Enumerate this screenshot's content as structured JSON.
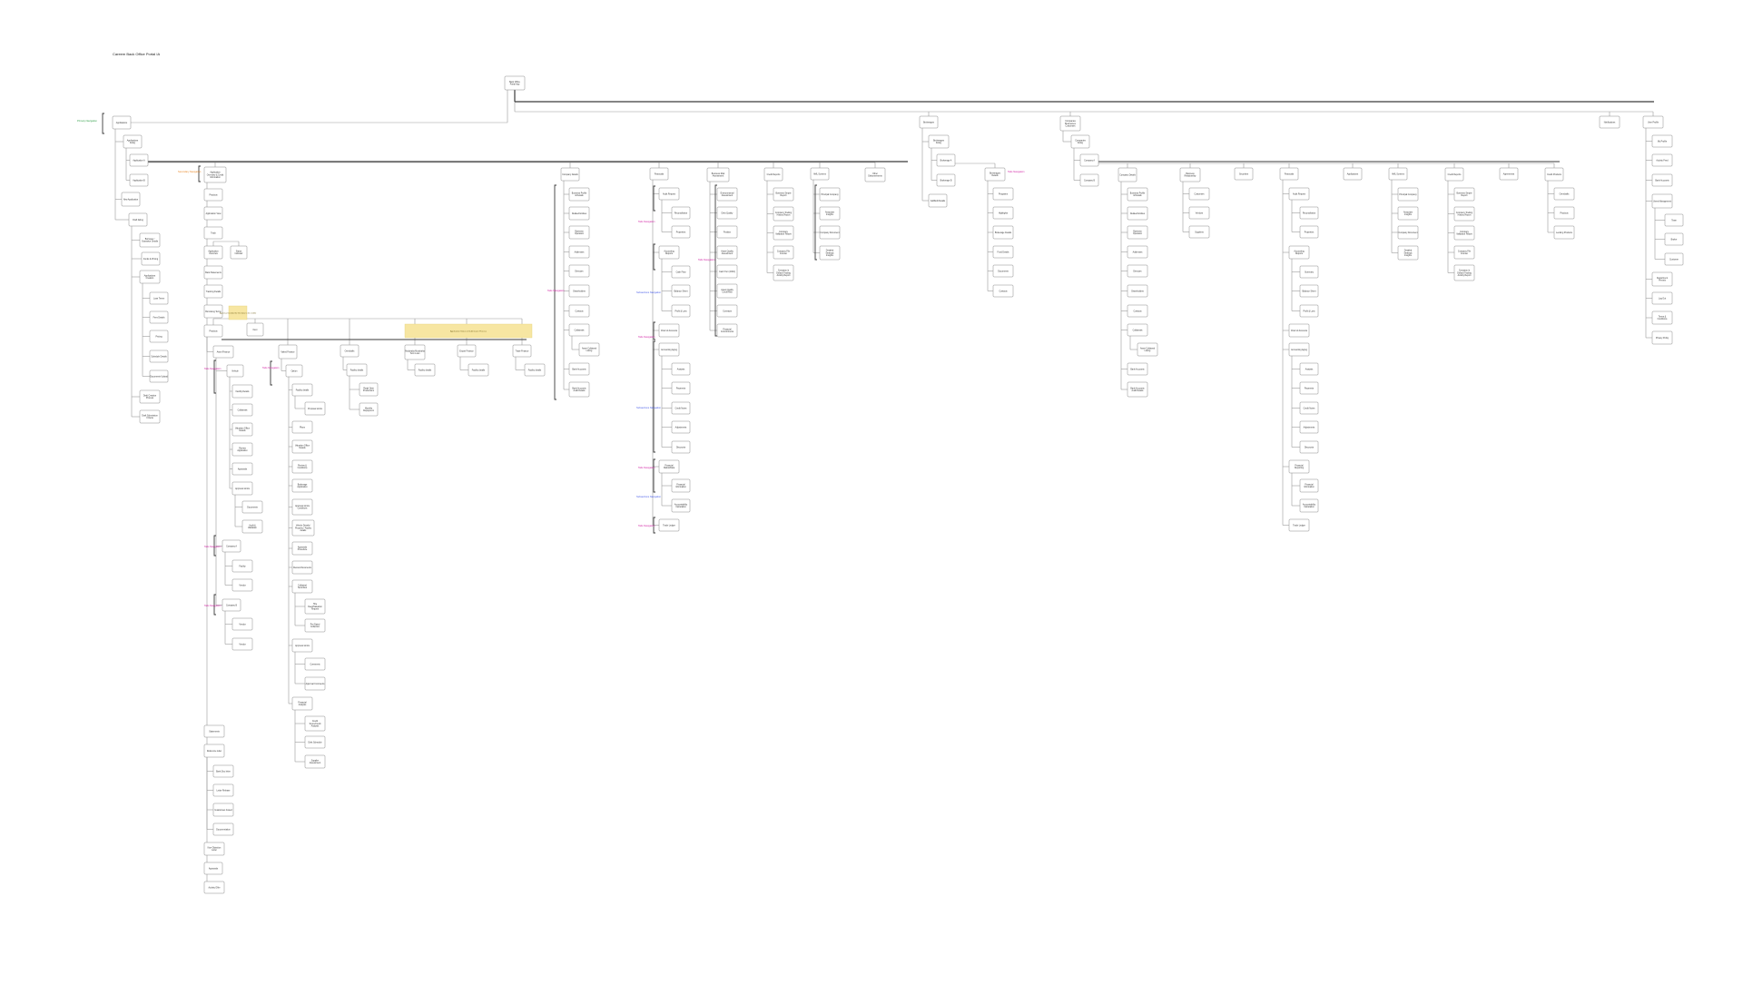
{
  "title": "Careem Back Office Portal IA",
  "colors": {
    "node_fill": "#ffffff",
    "node_stroke": "#8a8a8a",
    "line": "#9a9a9a",
    "trunk": "#3a3a3a",
    "note_fill": "#f7e6a2",
    "label_green": "#2e9e46",
    "label_orange": "#e8892a",
    "label_magenta": "#d11fa3",
    "label_blue": "#4a5ee8",
    "label_red": "#d23b3b"
  },
  "root": "Back Office Portal App",
  "section_labels": [
    {
      "id": "lbl_primary",
      "text": "Primary Navigation",
      "color": "green"
    },
    {
      "id": "lbl_secondary",
      "text": "Secondary Navigation",
      "color": "orange"
    },
    {
      "id": "lbl_tabs1",
      "text": "Tabs Navigation",
      "color": "magenta"
    },
    {
      "id": "lbl_tabs2",
      "text": "Tabs Navigation",
      "color": "magenta"
    },
    {
      "id": "lbl_tabs3",
      "text": "Tabs Navigation",
      "color": "magenta"
    },
    {
      "id": "lbl_tabs4",
      "text": "Tabs Navigation",
      "color": "magenta"
    },
    {
      "id": "lbl_tabs5",
      "text": "Tabs Navigation",
      "color": "magenta"
    },
    {
      "id": "lbl_tabs6",
      "text": "Tabs Navigation",
      "color": "magenta"
    },
    {
      "id": "lbl_tabs7",
      "text": "Tabs Navigation",
      "color": "magenta"
    },
    {
      "id": "lbl_tabs8",
      "text": "Tabs Navigation",
      "color": "magenta"
    },
    {
      "id": "lbl_tabs9",
      "text": "Tabs Navigation",
      "color": "magenta"
    },
    {
      "id": "lbl_tabs10",
      "text": "Tabs Navigation",
      "color": "magenta"
    },
    {
      "id": "lbl_tabs11",
      "text": "Tabs Navigation",
      "color": "magenta"
    },
    {
      "id": "lbl_sub1",
      "text": "Subsections Navigation",
      "color": "blue"
    },
    {
      "id": "lbl_sub2",
      "text": "Subsections Navigation",
      "color": "blue"
    },
    {
      "id": "lbl_sub3",
      "text": "Subsections Navigation",
      "color": "blue"
    }
  ],
  "notes": [
    {
      "id": "note_small",
      "text": "Approval needed for the data to be visible"
    },
    {
      "id": "note_wide",
      "text": "Application Status & Submission Process"
    }
  ],
  "nodes": [
    {
      "id": "n_root",
      "label": "Back Office Portal App"
    },
    {
      "id": "a_apps",
      "label": "Applications"
    },
    {
      "id": "a_apps_listing",
      "label": "Applications listing"
    },
    {
      "id": "a_app_a",
      "label": "Application A"
    },
    {
      "id": "a_app_b",
      "label": "Application B"
    },
    {
      "id": "a_new_app",
      "label": "New Application"
    },
    {
      "id": "a_draft",
      "label": "Draft listing"
    },
    {
      "id": "a_draft_1",
      "label": "Borrower / Guarantor Details"
    },
    {
      "id": "a_draft_2",
      "label": "Funds & Pricing"
    },
    {
      "id": "a_draft_3",
      "label": "Applications Creation"
    },
    {
      "id": "a_draft_4",
      "label": "Loan Terms"
    },
    {
      "id": "a_draft_5",
      "label": "Fees Details"
    },
    {
      "id": "a_draft_6",
      "label": "Pricing"
    },
    {
      "id": "a_draft_7",
      "label": "Schedule Details"
    },
    {
      "id": "a_draft_8",
      "label": "Documents Upload"
    },
    {
      "id": "a_draft_9",
      "label": "Draft Creation Process"
    },
    {
      "id": "a_draft_10",
      "label": "Draft Submission Criteria"
    },
    {
      "id": "b_overview",
      "label": "Application Overview & Credit Information"
    },
    {
      "id": "b_products",
      "label": "Products"
    },
    {
      "id": "b_app_view",
      "label": "Application View"
    },
    {
      "id": "b_track",
      "label": "Track"
    },
    {
      "id": "b_app_overview",
      "label": "Application Overview"
    },
    {
      "id": "b_status",
      "label": "Status Indicator"
    },
    {
      "id": "b_bank",
      "label": "Bank Statements"
    },
    {
      "id": "b_tracking",
      "label": "Tracking Details"
    },
    {
      "id": "b_borrowing",
      "label": "Borrowing Terms"
    },
    {
      "id": "b_products2",
      "label": "Products"
    },
    {
      "id": "b_next",
      "label": "Next"
    },
    {
      "id": "c_asset",
      "label": "Asset Finance"
    },
    {
      "id": "c_vehicle",
      "label": "Vehicle"
    },
    {
      "id": "c_v1",
      "label": "Facility Details"
    },
    {
      "id": "c_v2",
      "label": "Collaterals"
    },
    {
      "id": "c_v3",
      "label": "Valuation Office Details"
    },
    {
      "id": "c_v4",
      "label": "Review Application"
    },
    {
      "id": "c_v5",
      "label": "Approvals"
    },
    {
      "id": "c_v6",
      "label": "Approval Limits"
    },
    {
      "id": "c_v6a",
      "label": "Documents"
    },
    {
      "id": "c_v6b",
      "label": "Audit & Validation"
    },
    {
      "id": "c_company_a",
      "label": "Company A"
    },
    {
      "id": "c_ca1",
      "label": "Facility"
    },
    {
      "id": "c_ca2",
      "label": "Vendor"
    },
    {
      "id": "c_company_b",
      "label": "Company B"
    },
    {
      "id": "c_cb1",
      "label": "Vendor"
    },
    {
      "id": "c_cb2",
      "label": "Vendor"
    },
    {
      "id": "d_vaked",
      "label": "Vaked Finance"
    },
    {
      "id": "d_option",
      "label": "Option"
    },
    {
      "id": "d_o1",
      "label": "Facility details"
    },
    {
      "id": "d_o1a",
      "label": "Proposal Limits"
    },
    {
      "id": "d_o2",
      "label": "Plans"
    },
    {
      "id": "d_o3",
      "label": "Valuation Office Details"
    },
    {
      "id": "d_o4",
      "label": "Review & Conditions"
    },
    {
      "id": "d_o5",
      "label": "Brokerage Application"
    },
    {
      "id": "d_o6",
      "label": "Approval Limits Conditions"
    },
    {
      "id": "d_o7",
      "label": "Vehicle Details / Property / Facility details"
    },
    {
      "id": "d_o8",
      "label": "Approvals Procedure"
    },
    {
      "id": "d_o9",
      "label": "Review Documents"
    },
    {
      "id": "d_o10",
      "label": "Collateral Securities"
    },
    {
      "id": "d_o10a",
      "label": "Title Deed/Valuation Reports"
    },
    {
      "id": "d_o10b",
      "label": "Pre-Dated Collection"
    },
    {
      "id": "d_o11",
      "label": "Approval Limits"
    },
    {
      "id": "d_o11a",
      "label": "Comments"
    },
    {
      "id": "d_o11b",
      "label": "Approval Comments"
    },
    {
      "id": "d_o12",
      "label": "Financial Analysis"
    },
    {
      "id": "d_o12a",
      "label": "Credit Score/Credit Analysis"
    },
    {
      "id": "d_o12b",
      "label": "Debt Schedule"
    },
    {
      "id": "d_o12c",
      "label": "Supplier Assessment"
    },
    {
      "id": "e_overdraft",
      "label": "Overdrafts"
    },
    {
      "id": "e_od1",
      "label": "Facility details"
    },
    {
      "id": "e_od1a",
      "label": "Retail Debt Productions"
    },
    {
      "id": "e_od1b",
      "label": "Monthly Repayment"
    },
    {
      "id": "e_mudaraba",
      "label": "Mudaraba Murabaha Term Loan"
    },
    {
      "id": "e_mu1",
      "label": "Facility details"
    },
    {
      "id": "e_export",
      "label": "Export Finance"
    },
    {
      "id": "e_ex1",
      "label": "Facility details"
    },
    {
      "id": "e_trade",
      "label": "Trade Finance"
    },
    {
      "id": "e_tr1",
      "label": "Facility details"
    },
    {
      "id": "f_statements",
      "label": "Statements"
    },
    {
      "id": "f_reference",
      "label": "Reference letter"
    },
    {
      "id": "f_r1",
      "label": "Bank Doc letter"
    },
    {
      "id": "f_r2",
      "label": "Letter Release"
    },
    {
      "id": "f_r3",
      "label": "Guarantees Issued"
    },
    {
      "id": "f_r4",
      "label": "Documentation"
    },
    {
      "id": "f_reports",
      "label": "Non-Objection Letter"
    },
    {
      "id": "f_approvals",
      "label": "Approvals"
    },
    {
      "id": "f_activity",
      "label": "Activity Offer"
    },
    {
      "id": "g_company",
      "label": "Company Details"
    },
    {
      "id": "g_c1",
      "label": "Business Profile & Details"
    },
    {
      "id": "g_c2",
      "label": "Related Entities"
    },
    {
      "id": "g_c3",
      "label": "Business Operation"
    },
    {
      "id": "g_c4",
      "label": "Addresses"
    },
    {
      "id": "g_c5",
      "label": "Directors"
    },
    {
      "id": "g_c6",
      "label": "Shareholders"
    },
    {
      "id": "g_c7",
      "label": "Contacts"
    },
    {
      "id": "g_c8",
      "label": "Collaterals"
    },
    {
      "id": "g_c8a",
      "label": "Asset Collateral Listing"
    },
    {
      "id": "g_c9",
      "label": "Bank Accounts"
    },
    {
      "id": "g_c10",
      "label": "Bank Accounts Audit Details"
    },
    {
      "id": "h_financials",
      "label": "Financials"
    },
    {
      "id": "h_audit",
      "label": "Audit Reports"
    },
    {
      "id": "h_a1",
      "label": "Reconciliation"
    },
    {
      "id": "h_a2",
      "label": "Properties"
    },
    {
      "id": "h_accounting",
      "label": "Accounting Reports"
    },
    {
      "id": "h_ac1",
      "label": "Cash Flow"
    },
    {
      "id": "h_ac2",
      "label": "Balance Sheet"
    },
    {
      "id": "h_ac3",
      "label": "Profit & Loss"
    },
    {
      "id": "h_chart",
      "label": "Chart of Accounts"
    },
    {
      "id": "h_aging",
      "label": "Accounting Aging"
    },
    {
      "id": "h_ag1",
      "label": "Analysis"
    },
    {
      "id": "h_ag2",
      "label": "Payments"
    },
    {
      "id": "h_ag3",
      "label": "Credit Notes"
    },
    {
      "id": "h_ag4",
      "label": "Adjustments"
    },
    {
      "id": "h_ag5",
      "label": "Discounts"
    },
    {
      "id": "h_ratios",
      "label": "Financial Ratios/Data"
    },
    {
      "id": "h_ra1",
      "label": "Financial Information"
    },
    {
      "id": "h_ra2",
      "label": "Accountability Calculation"
    },
    {
      "id": "h_ledger",
      "label": "Trade Ledger"
    },
    {
      "id": "i_business",
      "label": "Business Risk Assessment"
    },
    {
      "id": "i_b1",
      "label": "Environmental Assessment"
    },
    {
      "id": "i_b2",
      "label": "Debt Quality"
    },
    {
      "id": "i_b3",
      "label": "Position"
    },
    {
      "id": "i_b4",
      "label": "Asset Quality Assessment"
    },
    {
      "id": "i_b5",
      "label": "Cash Turn (DSO)"
    },
    {
      "id": "i_b6",
      "label": "Asset Quality Credit Risk"
    },
    {
      "id": "i_b7",
      "label": "Contracts"
    },
    {
      "id": "i_b8",
      "label": "Financial Commitments"
    },
    {
      "id": "j_credit",
      "label": "Credit Reports"
    },
    {
      "id": "j_cr1",
      "label": "Business Simple Report"
    },
    {
      "id": "j_cr2",
      "label": "Company Trading History Report"
    },
    {
      "id": "j_cr3",
      "label": "Company Validation Report"
    },
    {
      "id": "j_cr4",
      "label": "Company File Counter"
    },
    {
      "id": "j_cr5",
      "label": "Company in Default Trading Activity Report"
    },
    {
      "id": "k_aml",
      "label": "AML Screens"
    },
    {
      "id": "k_am1",
      "label": "Principal Company"
    },
    {
      "id": "k_am2",
      "label": "Associate Insights"
    },
    {
      "id": "k_am3",
      "label": "Company Document"
    },
    {
      "id": "k_am4",
      "label": "Detailed Strategic Insights"
    },
    {
      "id": "l_other",
      "label": "Other Disbursements"
    },
    {
      "id": "m_brokerages",
      "label": "Brokerages"
    },
    {
      "id": "m_listing",
      "label": "Brokerages listing"
    },
    {
      "id": "m_b_a",
      "label": "Brokerage A"
    },
    {
      "id": "m_b_b",
      "label": "Brokerage B"
    },
    {
      "id": "m_add",
      "label": "Add/Edit Details"
    },
    {
      "id": "m_details",
      "label": "Brokerages Details"
    },
    {
      "id": "m_d1",
      "label": "Programs"
    },
    {
      "id": "m_d2",
      "label": "Highlights"
    },
    {
      "id": "m_d3",
      "label": "Brokerage Details"
    },
    {
      "id": "m_d4",
      "label": "Fund Details"
    },
    {
      "id": "m_d5",
      "label": "Documents"
    },
    {
      "id": "m_d6",
      "label": "Contacts"
    },
    {
      "id": "n_companies",
      "label": "Companies Businesses Customers"
    },
    {
      "id": "n_listing",
      "label": "Companies listing"
    },
    {
      "id": "n_c_a",
      "label": "Company A"
    },
    {
      "id": "n_c_b",
      "label": "Company B"
    },
    {
      "id": "n_details",
      "label": "Company Details"
    },
    {
      "id": "n_d1",
      "label": "Business Profile & Details"
    },
    {
      "id": "n_d2",
      "label": "Related Entities"
    },
    {
      "id": "n_d3",
      "label": "Business Operation"
    },
    {
      "id": "n_d4",
      "label": "Addresses"
    },
    {
      "id": "n_d5",
      "label": "Directors"
    },
    {
      "id": "n_d6",
      "label": "Shareholders"
    },
    {
      "id": "n_d7",
      "label": "Contacts"
    },
    {
      "id": "n_d8",
      "label": "Collaterals"
    },
    {
      "id": "n_d8a",
      "label": "Asset Collateral Listing"
    },
    {
      "id": "n_d9",
      "label": "Bank Accounts"
    },
    {
      "id": "n_d10",
      "label": "Bank Accounts Audit Details"
    },
    {
      "id": "n_rel",
      "label": "Business Relationship"
    },
    {
      "id": "n_r1",
      "label": "Customers"
    },
    {
      "id": "n_r2",
      "label": "Vendors"
    },
    {
      "id": "n_r3",
      "label": "Suppliers"
    },
    {
      "id": "n_security",
      "label": "Securities"
    },
    {
      "id": "n_fin",
      "label": "Financials"
    },
    {
      "id": "n_f_audit",
      "label": "Audit Reports"
    },
    {
      "id": "n_f_a1",
      "label": "Reconciliation"
    },
    {
      "id": "n_f_a2",
      "label": "Properties"
    },
    {
      "id": "n_f_acc",
      "label": "Accounting Reports"
    },
    {
      "id": "n_f_ac1",
      "label": "Summary"
    },
    {
      "id": "n_f_ac2",
      "label": "Balance Sheet"
    },
    {
      "id": "n_f_ac3",
      "label": "Profit & Loss"
    },
    {
      "id": "n_f_chart",
      "label": "Chart of Accounts"
    },
    {
      "id": "n_f_aging",
      "label": "Accounting Aging"
    },
    {
      "id": "n_f_ag1",
      "label": "Analysis"
    },
    {
      "id": "n_f_ag2",
      "label": "Payments"
    },
    {
      "id": "n_f_ag3",
      "label": "Credit Notes"
    },
    {
      "id": "n_f_ag4",
      "label": "Adjustments"
    },
    {
      "id": "n_f_ag5",
      "label": "Discounts"
    },
    {
      "id": "n_f_ratios",
      "label": "Financial Reporting"
    },
    {
      "id": "n_f_ra1",
      "label": "Financial Information"
    },
    {
      "id": "n_f_ra2",
      "label": "Accountability Calculation"
    },
    {
      "id": "n_f_ledger",
      "label": "Trade Ledger"
    },
    {
      "id": "n_apps",
      "label": "Applications"
    },
    {
      "id": "n_aml",
      "label": "AML Screens"
    },
    {
      "id": "n_am1",
      "label": "Principal Company"
    },
    {
      "id": "n_am2",
      "label": "Associate Insights"
    },
    {
      "id": "n_am3",
      "label": "Company Document"
    },
    {
      "id": "n_am4",
      "label": "Detailed Strategic Insights"
    },
    {
      "id": "n_credit",
      "label": "Credit Reports"
    },
    {
      "id": "n_cr1",
      "label": "Business Simple Report"
    },
    {
      "id": "n_cr2",
      "label": "Company Trading History Report"
    },
    {
      "id": "n_cr3",
      "label": "Company Validation Report"
    },
    {
      "id": "n_cr4",
      "label": "Company File Counter"
    },
    {
      "id": "n_cr5",
      "label": "Company in Default Trading Activity Report"
    },
    {
      "id": "n_agreements",
      "label": "Agreements"
    },
    {
      "id": "n_credit_prod",
      "label": "Credit Products"
    },
    {
      "id": "n_cp1",
      "label": "Overdrafts"
    },
    {
      "id": "n_cp2",
      "label": "Products"
    },
    {
      "id": "n_cp3",
      "label": "Lending Products"
    },
    {
      "id": "o_notifications",
      "label": "Notifications"
    },
    {
      "id": "p_user",
      "label": "User Profile"
    },
    {
      "id": "p_u1",
      "label": "My Profile"
    },
    {
      "id": "p_u2",
      "label": "Activity Feed"
    },
    {
      "id": "p_u3",
      "label": "Bank Accounts"
    },
    {
      "id": "p_u4",
      "label": "Users Management"
    },
    {
      "id": "p_u4a",
      "label": "Team"
    },
    {
      "id": "p_u4b",
      "label": "Broker"
    },
    {
      "id": "p_u4c",
      "label": "Customer"
    },
    {
      "id": "p_u5",
      "label": "Department Presets"
    },
    {
      "id": "p_u6",
      "label": "Log Out"
    },
    {
      "id": "p_u7",
      "label": "Terms & Conditions"
    },
    {
      "id": "p_u8",
      "label": "Privacy Policy"
    }
  ]
}
